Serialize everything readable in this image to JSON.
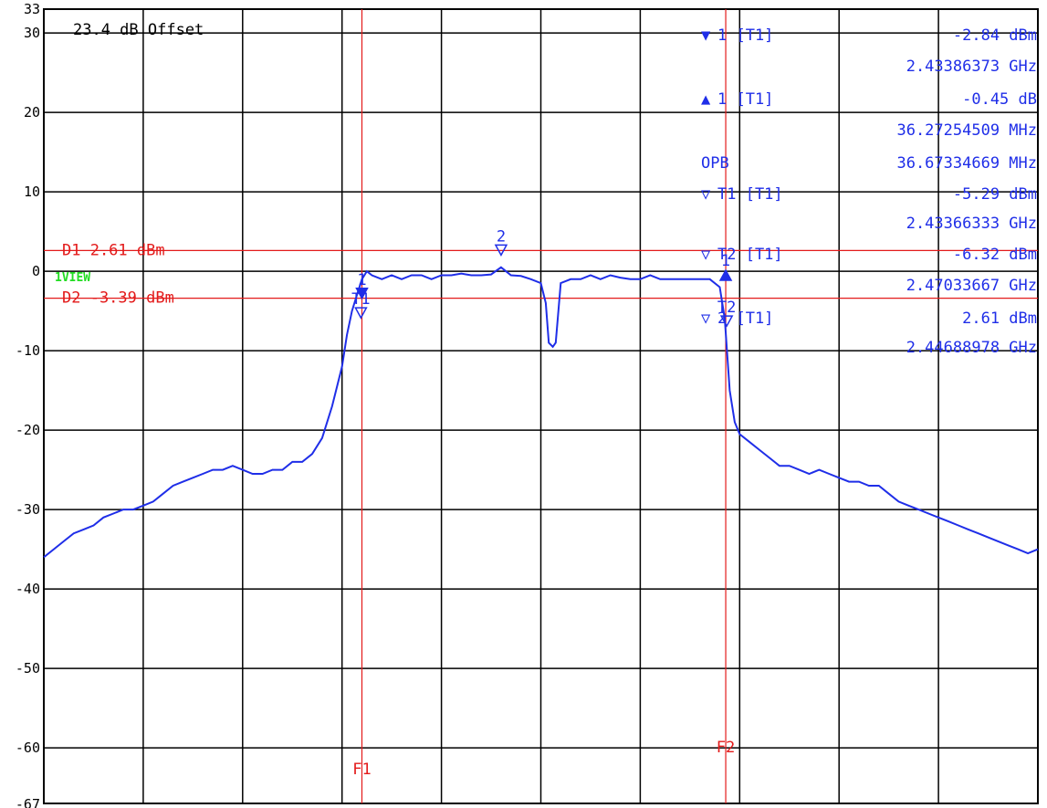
{
  "colors": {
    "trace": "#1f2ee8",
    "line": "#e31a1a",
    "grid": "#000000",
    "view": "#22dd22"
  },
  "offset_text": "23.4 dB Offset",
  "view_label": "1VIEW",
  "display_lines": [
    {
      "label": "D1 2.61 dBm",
      "value": 2.61
    },
    {
      "label": "D2 -3.39 dBm",
      "value": -3.39
    }
  ],
  "freq_lines": [
    {
      "label": "F1",
      "x": 3.2
    },
    {
      "label": "F2",
      "x": 6.86
    }
  ],
  "marker_table": [
    {
      "symbol": "▼",
      "name": "1 [T1]",
      "value": "-2.84 dBm",
      "freq": "2.43386373 GHz"
    },
    {
      "symbol": "▲",
      "name": "1 [T1]",
      "value": "-0.45 dB",
      "freq": "36.27254509 MHz"
    },
    {
      "symbol": "",
      "name": "OPB",
      "value": "",
      "freq": "36.67334669 MHz"
    },
    {
      "symbol": "▽",
      "name": "T1 [T1]",
      "value": "-5.29 dBm",
      "freq": "2.43366333 GHz"
    },
    {
      "symbol": "▽",
      "name": "T2 [T1]",
      "value": "-6.32 dBm",
      "freq": "2.47033667 GHz"
    },
    {
      "symbol": "▽",
      "name": "2 [T1]",
      "value": "2.61 dBm",
      "freq": "2.44688978 GHz"
    }
  ],
  "trace_markers": [
    {
      "label": "1",
      "x": 3.2,
      "y": -2.84,
      "type": "filled-down"
    },
    {
      "label": "T1",
      "x": 3.19,
      "y": -5.29,
      "type": "open-down"
    },
    {
      "label": "2",
      "x": 4.6,
      "y": 2.61,
      "type": "open-down"
    },
    {
      "label": "1",
      "x": 6.86,
      "y": -0.45,
      "type": "filled-up"
    },
    {
      "label": "T2",
      "x": 6.87,
      "y": -6.32,
      "type": "open-down"
    }
  ],
  "chart_data": {
    "type": "line",
    "title": "",
    "xlabel": "",
    "ylabel": "",
    "ylim": [
      -67,
      33
    ],
    "xlim": [
      0,
      10
    ],
    "yticks": [
      30,
      20,
      10,
      0,
      -10,
      -20,
      -30,
      -40,
      -50,
      -60
    ],
    "ytick_labels_extra": [
      33,
      -67
    ],
    "grid": true,
    "x_divisions": 10,
    "series": [
      {
        "x": [
          0,
          0.1,
          0.2,
          0.3,
          0.4,
          0.5,
          0.6,
          0.7,
          0.8,
          0.9,
          1.0,
          1.1,
          1.2,
          1.3,
          1.4,
          1.5,
          1.6,
          1.7,
          1.8,
          1.9,
          2.0,
          2.1,
          2.2,
          2.3,
          2.4,
          2.5,
          2.6,
          2.7,
          2.8,
          2.9,
          3.0,
          3.05,
          3.1,
          3.15,
          3.2,
          3.25,
          3.3,
          3.4,
          3.5,
          3.6,
          3.7,
          3.8,
          3.9,
          4.0,
          4.1,
          4.2,
          4.3,
          4.4,
          4.5,
          4.6,
          4.7,
          4.8,
          4.9,
          5.0,
          5.05,
          5.08,
          5.12,
          5.15,
          5.2,
          5.3,
          5.4,
          5.5,
          5.6,
          5.7,
          5.8,
          5.9,
          6.0,
          6.1,
          6.2,
          6.3,
          6.4,
          6.5,
          6.6,
          6.7,
          6.8,
          6.85,
          6.9,
          6.95,
          7.0,
          7.1,
          7.2,
          7.3,
          7.4,
          7.5,
          7.6,
          7.7,
          7.8,
          7.9,
          8.0,
          8.1,
          8.2,
          8.3,
          8.4,
          8.5,
          8.6,
          8.7,
          8.8,
          8.9,
          9.0,
          9.1,
          9.2,
          9.3,
          9.4,
          9.5,
          9.6,
          9.7,
          9.8,
          9.9,
          10.0
        ],
        "values": [
          -36,
          -35,
          -34,
          -33,
          -32.5,
          -32,
          -31,
          -30.5,
          -30,
          -30,
          -29.5,
          -29,
          -28,
          -27,
          -26.5,
          -26,
          -25.5,
          -25,
          -25,
          -24.5,
          -25,
          -25.5,
          -25.5,
          -25,
          -25,
          -24,
          -24,
          -23,
          -21,
          -17,
          -12,
          -8,
          -5,
          -3,
          -1,
          0,
          -0.5,
          -1,
          -0.5,
          -1,
          -0.5,
          -0.5,
          -1,
          -0.5,
          -0.5,
          -0.3,
          -0.5,
          -0.5,
          -0.4,
          0.5,
          -0.5,
          -0.6,
          -1,
          -1.5,
          -4,
          -9,
          -9.5,
          -9,
          -1.5,
          -1,
          -1,
          -0.5,
          -1,
          -0.5,
          -0.8,
          -1,
          -1,
          -0.5,
          -1,
          -1,
          -1,
          -1,
          -1,
          -1,
          -2,
          -6,
          -15,
          -19,
          -20.5,
          -21.5,
          -22.5,
          -23.5,
          -24.5,
          -24.5,
          -25,
          -25.5,
          -25,
          -25.5,
          -26,
          -26.5,
          -26.5,
          -27,
          -27,
          -28,
          -29,
          -29.5,
          -30,
          -30.5,
          -31,
          -31.5,
          -32,
          -32.5,
          -33,
          -33.5,
          -34,
          -34.5,
          -35,
          -35.5,
          -35
        ]
      }
    ]
  }
}
